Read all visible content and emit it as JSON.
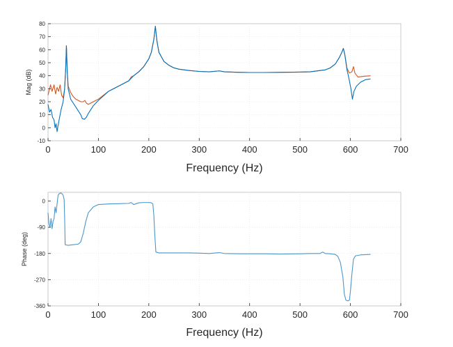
{
  "chart_data": [
    {
      "type": "line",
      "xlabel": "Frequency (Hz)",
      "ylabel": "Mag (dB)",
      "xlim": [
        0,
        700
      ],
      "ylim": [
        -10,
        80
      ],
      "x_ticks": [
        0,
        100,
        200,
        300,
        400,
        500,
        600,
        700
      ],
      "x_tick_labels": [
        "0",
        "100",
        "200",
        "300",
        "400",
        "500",
        "600",
        "700"
      ],
      "y_ticks": [
        -10,
        0,
        10,
        20,
        30,
        40,
        50,
        60,
        70,
        80
      ],
      "y_tick_labels": [
        "-10",
        "0",
        "10",
        "20",
        "30",
        "40",
        "50",
        "60",
        "70",
        "80"
      ],
      "grid": true,
      "series": [
        {
          "color": "#d95319",
          "points": [
            [
              0,
              25
            ],
            [
              5,
              33
            ],
            [
              8,
              28
            ],
            [
              12,
              33
            ],
            [
              15,
              26
            ],
            [
              18,
              31
            ],
            [
              21,
              28
            ],
            [
              24,
              33
            ],
            [
              27,
              25
            ],
            [
              30,
              23
            ],
            [
              33,
              30
            ],
            [
              35,
              45
            ],
            [
              36.5,
              63
            ],
            [
              38,
              45
            ],
            [
              40,
              32
            ],
            [
              45,
              27
            ],
            [
              50,
              24
            ],
            [
              55,
              22
            ],
            [
              60,
              21
            ],
            [
              65,
              20
            ],
            [
              70,
              20
            ],
            [
              73,
              21
            ],
            [
              76,
              19
            ],
            [
              80,
              18
            ],
            [
              85,
              19
            ],
            [
              90,
              20
            ],
            [
              100,
              22
            ],
            [
              110,
              25
            ],
            [
              120,
              28
            ],
            [
              130,
              30
            ],
            [
              140,
              32
            ],
            [
              150,
              34
            ],
            [
              160,
              36
            ],
            [
              165,
              39
            ],
            [
              170,
              40
            ],
            [
              180,
              43
            ],
            [
              190,
              47
            ],
            [
              200,
              53
            ],
            [
              205,
              58
            ],
            [
              210,
              68
            ],
            [
              213,
              78
            ],
            [
              216,
              67
            ],
            [
              220,
              58
            ],
            [
              230,
              51
            ],
            [
              240,
              48
            ],
            [
              250,
              46
            ],
            [
              260,
              45
            ],
            [
              280,
              44
            ],
            [
              300,
              43.3
            ],
            [
              320,
              43
            ],
            [
              340,
              43.7
            ],
            [
              350,
              43
            ],
            [
              380,
              42.6
            ],
            [
              400,
              42.5
            ],
            [
              430,
              42.5
            ],
            [
              460,
              42.6
            ],
            [
              500,
              42.8
            ],
            [
              520,
              43
            ],
            [
              540,
              44
            ],
            [
              550,
              44.5
            ],
            [
              560,
              46
            ],
            [
              570,
              49
            ],
            [
              578,
              54
            ],
            [
              583,
              58
            ],
            [
              586,
              61
            ],
            [
              589,
              56
            ],
            [
              593,
              46
            ],
            [
              598,
              42
            ],
            [
              603,
              43
            ],
            [
              606,
              47
            ],
            [
              609,
              42
            ],
            [
              615,
              39
            ],
            [
              625,
              39.5
            ],
            [
              640,
              40
            ]
          ]
        },
        {
          "color": "#0072bd",
          "points": [
            [
              0,
              18
            ],
            [
              3,
              12
            ],
            [
              6,
              14
            ],
            [
              9,
              8
            ],
            [
              12,
              6
            ],
            [
              14,
              0
            ],
            [
              16,
              3
            ],
            [
              18,
              -3
            ],
            [
              20,
              2
            ],
            [
              23,
              8
            ],
            [
              26,
              14
            ],
            [
              30,
              20
            ],
            [
              33,
              30
            ],
            [
              35,
              45
            ],
            [
              36.5,
              63
            ],
            [
              38,
              45
            ],
            [
              40,
              30
            ],
            [
              45,
              22
            ],
            [
              50,
              19
            ],
            [
              55,
              16
            ],
            [
              60,
              13
            ],
            [
              65,
              10
            ],
            [
              68,
              7
            ],
            [
              72,
              6.5
            ],
            [
              76,
              8
            ],
            [
              80,
              11
            ],
            [
              85,
              14
            ],
            [
              90,
              17
            ],
            [
              100,
              21
            ],
            [
              110,
              24.5
            ],
            [
              120,
              28
            ],
            [
              130,
              30
            ],
            [
              140,
              32
            ],
            [
              150,
              34
            ],
            [
              160,
              36
            ],
            [
              170,
              40
            ],
            [
              180,
              43
            ],
            [
              190,
              47
            ],
            [
              200,
              53
            ],
            [
              205,
              58
            ],
            [
              210,
              68
            ],
            [
              213,
              78
            ],
            [
              216,
              67
            ],
            [
              220,
              58
            ],
            [
              230,
              51
            ],
            [
              240,
              48
            ],
            [
              250,
              46
            ],
            [
              260,
              45
            ],
            [
              280,
              44
            ],
            [
              300,
              43.3
            ],
            [
              320,
              43
            ],
            [
              340,
              43.7
            ],
            [
              350,
              43
            ],
            [
              380,
              42.6
            ],
            [
              400,
              42.5
            ],
            [
              430,
              42.5
            ],
            [
              460,
              42.6
            ],
            [
              500,
              42.8
            ],
            [
              520,
              43
            ],
            [
              540,
              44
            ],
            [
              550,
              44.5
            ],
            [
              560,
              46
            ],
            [
              570,
              49
            ],
            [
              578,
              54
            ],
            [
              583,
              58
            ],
            [
              586,
              61
            ],
            [
              589,
              56
            ],
            [
              593,
              45
            ],
            [
              597,
              38
            ],
            [
              601,
              30
            ],
            [
              604,
              22
            ],
            [
              607,
              28
            ],
            [
              612,
              32
            ],
            [
              620,
              35
            ],
            [
              630,
              37
            ],
            [
              640,
              37.5
            ]
          ]
        }
      ]
    },
    {
      "type": "line",
      "xlabel": "Frequency (Hz)",
      "ylabel": "Phase (deg)",
      "xlim": [
        0,
        700
      ],
      "ylim": [
        -360,
        30
      ],
      "x_ticks": [
        0,
        100,
        200,
        300,
        400,
        500,
        600,
        700
      ],
      "x_tick_labels": [
        "0",
        "100",
        "200",
        "300",
        "400",
        "500",
        "600",
        "700"
      ],
      "y_ticks": [
        -360,
        -270,
        -180,
        -90,
        0
      ],
      "y_tick_labels": [
        "-360",
        "-270",
        "-180",
        "-90",
        "0"
      ],
      "grid": true,
      "series": [
        {
          "color": "#4a96c9",
          "points": [
            [
              0,
              -40
            ],
            [
              2,
              -80
            ],
            [
              4,
              -90
            ],
            [
              6,
              -60
            ],
            [
              8,
              -95
            ],
            [
              10,
              -70
            ],
            [
              12,
              -60
            ],
            [
              14,
              -20
            ],
            [
              16,
              -40
            ],
            [
              18,
              -10
            ],
            [
              20,
              20
            ],
            [
              22,
              25
            ],
            [
              25,
              28
            ],
            [
              28,
              25
            ],
            [
              30,
              20
            ],
            [
              32,
              5
            ],
            [
              33,
              -60
            ],
            [
              34,
              -150
            ],
            [
              40,
              -152
            ],
            [
              50,
              -150
            ],
            [
              60,
              -148
            ],
            [
              65,
              -140
            ],
            [
              70,
              -110
            ],
            [
              75,
              -70
            ],
            [
              80,
              -40
            ],
            [
              90,
              -20
            ],
            [
              100,
              -12
            ],
            [
              120,
              -10
            ],
            [
              140,
              -9
            ],
            [
              160,
              -8
            ],
            [
              165,
              -5
            ],
            [
              170,
              -12
            ],
            [
              180,
              -6
            ],
            [
              190,
              -5
            ],
            [
              200,
              -5
            ],
            [
              205,
              -6
            ],
            [
              208,
              -10
            ],
            [
              210,
              -50
            ],
            [
              212,
              -120
            ],
            [
              214,
              -175
            ],
            [
              220,
              -178
            ],
            [
              250,
              -178
            ],
            [
              280,
              -178
            ],
            [
              300,
              -179
            ],
            [
              320,
              -180
            ],
            [
              340,
              -177
            ],
            [
              350,
              -180
            ],
            [
              380,
              -181
            ],
            [
              400,
              -181
            ],
            [
              430,
              -181
            ],
            [
              460,
              -182
            ],
            [
              500,
              -181
            ],
            [
              520,
              -180
            ],
            [
              540,
              -180
            ],
            [
              545,
              -175
            ],
            [
              550,
              -180
            ],
            [
              560,
              -181
            ],
            [
              570,
              -183
            ],
            [
              575,
              -190
            ],
            [
              580,
              -210
            ],
            [
              585,
              -260
            ],
            [
              588,
              -320
            ],
            [
              591,
              -340
            ],
            [
              595,
              -343
            ],
            [
              598,
              -340
            ],
            [
              600,
              -310
            ],
            [
              603,
              -250
            ],
            [
              606,
              -200
            ],
            [
              610,
              -188
            ],
            [
              620,
              -185
            ],
            [
              640,
              -183
            ]
          ]
        }
      ]
    }
  ]
}
